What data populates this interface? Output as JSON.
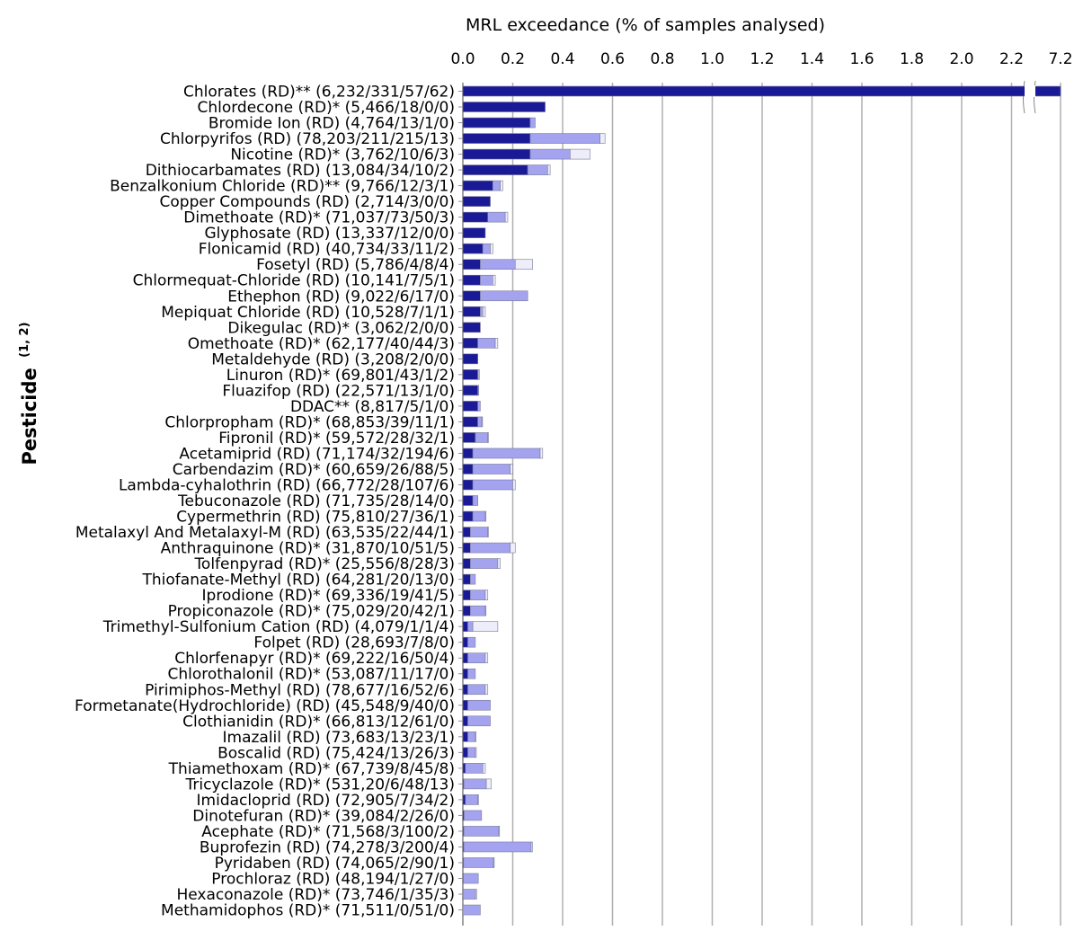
{
  "chart_data": {
    "type": "bar",
    "orientation": "horizontal",
    "stacked": true,
    "xlabel": "MRL exceedance (% of samples analysed)",
    "ylabel": "Pesticide",
    "ylabel_sup": "(1, 2)",
    "axis_break": true,
    "xlim": [
      0,
      2.4
    ],
    "x_ticks": [
      "0.0",
      "0.2",
      "0.4",
      "0.6",
      "0.8",
      "1.0",
      "1.2",
      "1.4",
      "1.6",
      "1.8",
      "2.0",
      "2.2",
      "7.2"
    ],
    "grid": true,
    "series": [
      {
        "key": "dark",
        "color": "#1a1a96"
      },
      {
        "key": "light",
        "color": "#a3a3f0"
      },
      {
        "key": "pale",
        "color": "#eeeefa"
      }
    ],
    "categories": [
      "Chlorates (RD)** (6,232/331/57/62)",
      "Chlordecone (RD)* (5,466/18/0/0)",
      "Bromide Ion (RD) (4,764/13/1/0)",
      "Chlorpyrifos (RD) (78,203/211/215/13)",
      "Nicotine (RD)* (3,762/10/6/3)",
      "Dithiocarbamates (RD) (13,084/34/10/2)",
      "Benzalkonium Chloride (RD)** (9,766/12/3/1)",
      "Copper Compounds (RD) (2,714/3/0/0)",
      "Dimethoate (RD)* (71,037/73/50/3)",
      "Glyphosate (RD) (13,337/12/0/0)",
      "Flonicamid (RD) (40,734/33/11/2)",
      "Fosetyl (RD) (5,786/4/8/4)",
      "Chlormequat-Chloride (RD) (10,141/7/5/1)",
      "Ethephon (RD) (9,022/6/17/0)",
      "Mepiquat Chloride (RD) (10,528/7/1/1)",
      "Dikegulac (RD)* (3,062/2/0/0)",
      "Omethoate (RD)* (62,177/40/44/3)",
      "Metaldehyde (RD) (3,208/2/0/0)",
      "Linuron (RD)* (69,801/43/1/2)",
      "Fluazifop (RD) (22,571/13/1/0)",
      "DDAC** (8,817/5/1/0)",
      "Chlorpropham (RD)* (68,853/39/11/1)",
      "Fipronil (RD)* (59,572/28/32/1)",
      "Acetamiprid (RD) (71,174/32/194/6)",
      "Carbendazim (RD)* (60,659/26/88/5)",
      "Lambda-cyhalothrin (RD) (66,772/28/107/6)",
      "Tebuconazole (RD) (71,735/28/14/0)",
      "Cypermethrin (RD) (75,810/27/36/1)",
      "Metalaxyl And Metalaxyl-M (RD) (63,535/22/44/1)",
      "Anthraquinone (RD)* (31,870/10/51/5)",
      "Tolfenpyrad (RD)* (25,556/8/28/3)",
      "Thiofanate-Methyl (RD) (64,281/20/13/0)",
      "Iprodione (RD)* (69,336/19/41/5)",
      "Propiconazole (RD)* (75,029/20/42/1)",
      "Trimethyl-Sulfonium Cation (RD) (4,079/1/1/4)",
      "Folpet (RD) (28,693/7/8/0)",
      "Chlorfenapyr (RD)* (69,222/16/50/4)",
      "Chlorothalonil (RD)* (53,087/11/17/0)",
      "Pirimiphos-Methyl (RD) (78,677/16/52/6)",
      "Formetanate(Hydrochloride) (RD) (45,548/9/40/0)",
      "Clothianidin (RD)* (66,813/12/61/0)",
      "Imazalil (RD) (73,683/13/23/1)",
      "Boscalid (RD) (75,424/13/26/3)",
      "Thiamethoxam (RD)* (67,739/8/45/8)",
      "Tricyclazole (RD)* (531,20/6/48/13)",
      "Imidacloprid (RD) (72,905/7/34/2)",
      "Dinotefuran (RD)* (39,084/2/26/0)",
      "Acephate (RD)* (71,568/3/100/2)",
      "Buprofezin (RD) (74,278/3/200/4)",
      "Pyridaben (RD) (74,065/2/90/1)",
      "Prochloraz (RD) (48,194/1/27/0)",
      "Hexaconazole (RD)* (73,746/1/35/3)",
      "Methamidophos (RD)* (71,511/0/51/0)"
    ],
    "values": [
      {
        "dark": 7.2,
        "light": 0,
        "pale": 0
      },
      {
        "dark": 0.33,
        "light": 0,
        "pale": 0
      },
      {
        "dark": 0.27,
        "light": 0.02,
        "pale": 0
      },
      {
        "dark": 0.27,
        "light": 0.28,
        "pale": 0.02
      },
      {
        "dark": 0.27,
        "light": 0.16,
        "pale": 0.08
      },
      {
        "dark": 0.26,
        "light": 0.08,
        "pale": 0.01
      },
      {
        "dark": 0.12,
        "light": 0.03,
        "pale": 0.01
      },
      {
        "dark": 0.11,
        "light": 0,
        "pale": 0
      },
      {
        "dark": 0.1,
        "light": 0.07,
        "pale": 0.01
      },
      {
        "dark": 0.09,
        "light": 0,
        "pale": 0
      },
      {
        "dark": 0.08,
        "light": 0.03,
        "pale": 0.01
      },
      {
        "dark": 0.07,
        "light": 0.14,
        "pale": 0.07
      },
      {
        "dark": 0.07,
        "light": 0.05,
        "pale": 0.01
      },
      {
        "dark": 0.07,
        "light": 0.19,
        "pale": 0
      },
      {
        "dark": 0.07,
        "light": 0.01,
        "pale": 0.01
      },
      {
        "dark": 0.07,
        "light": 0,
        "pale": 0
      },
      {
        "dark": 0.06,
        "light": 0.07,
        "pale": 0.01
      },
      {
        "dark": 0.06,
        "light": 0,
        "pale": 0
      },
      {
        "dark": 0.06,
        "light": 0.002,
        "pale": 0.004
      },
      {
        "dark": 0.06,
        "light": 0.004,
        "pale": 0
      },
      {
        "dark": 0.06,
        "light": 0.01,
        "pale": 0
      },
      {
        "dark": 0.06,
        "light": 0.016,
        "pale": 0.002
      },
      {
        "dark": 0.05,
        "light": 0.05,
        "pale": 0.002
      },
      {
        "dark": 0.04,
        "light": 0.27,
        "pale": 0.01
      },
      {
        "dark": 0.04,
        "light": 0.15,
        "pale": 0.01
      },
      {
        "dark": 0.04,
        "light": 0.16,
        "pale": 0.01
      },
      {
        "dark": 0.04,
        "light": 0.02,
        "pale": 0
      },
      {
        "dark": 0.04,
        "light": 0.05,
        "pale": 0.001
      },
      {
        "dark": 0.03,
        "light": 0.07,
        "pale": 0.002
      },
      {
        "dark": 0.03,
        "light": 0.16,
        "pale": 0.02
      },
      {
        "dark": 0.03,
        "light": 0.11,
        "pale": 0.01
      },
      {
        "dark": 0.03,
        "light": 0.02,
        "pale": 0
      },
      {
        "dark": 0.03,
        "light": 0.06,
        "pale": 0.01
      },
      {
        "dark": 0.03,
        "light": 0.06,
        "pale": 0.001
      },
      {
        "dark": 0.02,
        "light": 0.02,
        "pale": 0.1
      },
      {
        "dark": 0.02,
        "light": 0.03,
        "pale": 0
      },
      {
        "dark": 0.02,
        "light": 0.07,
        "pale": 0.01
      },
      {
        "dark": 0.02,
        "light": 0.03,
        "pale": 0
      },
      {
        "dark": 0.02,
        "light": 0.07,
        "pale": 0.01
      },
      {
        "dark": 0.02,
        "light": 0.09,
        "pale": 0
      },
      {
        "dark": 0.02,
        "light": 0.09,
        "pale": 0
      },
      {
        "dark": 0.02,
        "light": 0.03,
        "pale": 0.001
      },
      {
        "dark": 0.02,
        "light": 0.03,
        "pale": 0.004
      },
      {
        "dark": 0.01,
        "light": 0.07,
        "pale": 0.01
      },
      {
        "dark": 0.004,
        "light": 0.09,
        "pale": 0.02
      },
      {
        "dark": 0.01,
        "light": 0.05,
        "pale": 0.003
      },
      {
        "dark": 0.005,
        "light": 0.07,
        "pale": 0
      },
      {
        "dark": 0.004,
        "light": 0.14,
        "pale": 0.003
      },
      {
        "dark": 0.004,
        "light": 0.27,
        "pale": 0.005
      },
      {
        "dark": 0.003,
        "light": 0.12,
        "pale": 0.001
      },
      {
        "dark": 0.002,
        "light": 0.06,
        "pale": 0
      },
      {
        "dark": 0.001,
        "light": 0.05,
        "pale": 0.004
      },
      {
        "dark": 0,
        "light": 0.07,
        "pale": 0
      }
    ]
  }
}
